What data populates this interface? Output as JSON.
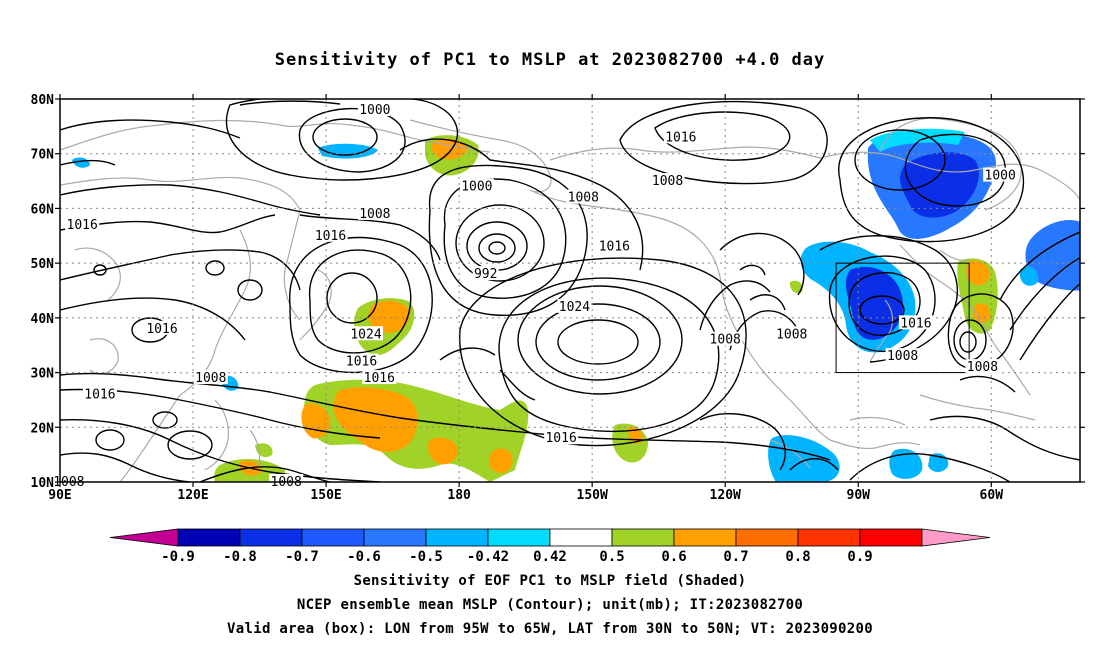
{
  "title": "Sensitivity of PC1 to MSLP at 2023082700 +4.0 day",
  "map": {
    "lon_labels": [
      "90E",
      "120E",
      "150E",
      "180",
      "150W",
      "120W",
      "90W",
      "60W"
    ],
    "lat_labels": [
      "80N",
      "70N",
      "60N",
      "50N",
      "40N",
      "30N",
      "20N",
      "10N"
    ],
    "lon_range": [
      90,
      320
    ],
    "lat_range": [
      10,
      80
    ],
    "box": {
      "lon_min": 265,
      "lon_max": 295,
      "lat_min": 30,
      "lat_max": 50
    },
    "contour_color": "#000000",
    "coast_color": "#aaaaaa",
    "grid_style": "dotted",
    "contour_labels": [
      {
        "text": "1000",
        "lon": 161,
        "lat": 78
      },
      {
        "text": "1016",
        "lon": 230,
        "lat": 73
      },
      {
        "text": "1000",
        "lon": 184,
        "lat": 64
      },
      {
        "text": "1008",
        "lon": 208,
        "lat": 62
      },
      {
        "text": "1008",
        "lon": 227,
        "lat": 65
      },
      {
        "text": "1000",
        "lon": 302,
        "lat": 66
      },
      {
        "text": "1016",
        "lon": 95,
        "lat": 57
      },
      {
        "text": "1008",
        "lon": 161,
        "lat": 59
      },
      {
        "text": "1016",
        "lon": 151,
        "lat": 55
      },
      {
        "text": "1016",
        "lon": 215,
        "lat": 53
      },
      {
        "text": "992",
        "lon": 186,
        "lat": 48
      },
      {
        "text": "1024",
        "lon": 206,
        "lat": 42
      },
      {
        "text": "1016",
        "lon": 113,
        "lat": 38
      },
      {
        "text": "1024",
        "lon": 159,
        "lat": 37
      },
      {
        "text": "1008",
        "lon": 240,
        "lat": 36
      },
      {
        "text": "1008",
        "lon": 255,
        "lat": 37
      },
      {
        "text": "1016",
        "lon": 283,
        "lat": 39
      },
      {
        "text": "1008",
        "lon": 280,
        "lat": 33
      },
      {
        "text": "1016",
        "lon": 158,
        "lat": 32
      },
      {
        "text": "1016",
        "lon": 162,
        "lat": 29
      },
      {
        "text": "1008",
        "lon": 124,
        "lat": 29
      },
      {
        "text": "1016",
        "lon": 99,
        "lat": 26
      },
      {
        "text": "1008",
        "lon": 298,
        "lat": 31
      },
      {
        "text": "1016",
        "lon": 203,
        "lat": 18
      },
      {
        "text": "1008",
        "lon": 92,
        "lat": 10
      },
      {
        "text": "1008",
        "lon": 141,
        "lat": 10
      }
    ]
  },
  "colorbar": {
    "labels": [
      "-0.9",
      "-0.8",
      "-0.7",
      "-0.6",
      "-0.5",
      "-0.42",
      "0.42",
      "0.5",
      "0.6",
      "0.7",
      "0.8",
      "0.9"
    ],
    "colors": [
      "#c40093",
      "#0000b4",
      "#0a2fe6",
      "#1e5aff",
      "#2878ff",
      "#00b4ff",
      "#00dcff",
      "#ffffff",
      "#a0d228",
      "#ffa000",
      "#ff6e00",
      "#ff3200",
      "#ff0000",
      "#ff9bc8"
    ]
  },
  "captions": [
    "Sensitivity of EOF PC1 to MSLP field (Shaded)",
    "NCEP ensemble mean MSLP (Contour); unit(mb); IT:2023082700",
    "Valid area (box): LON from 95W to 65W, LAT from 30N to 50N; VT: 2023090200"
  ]
}
